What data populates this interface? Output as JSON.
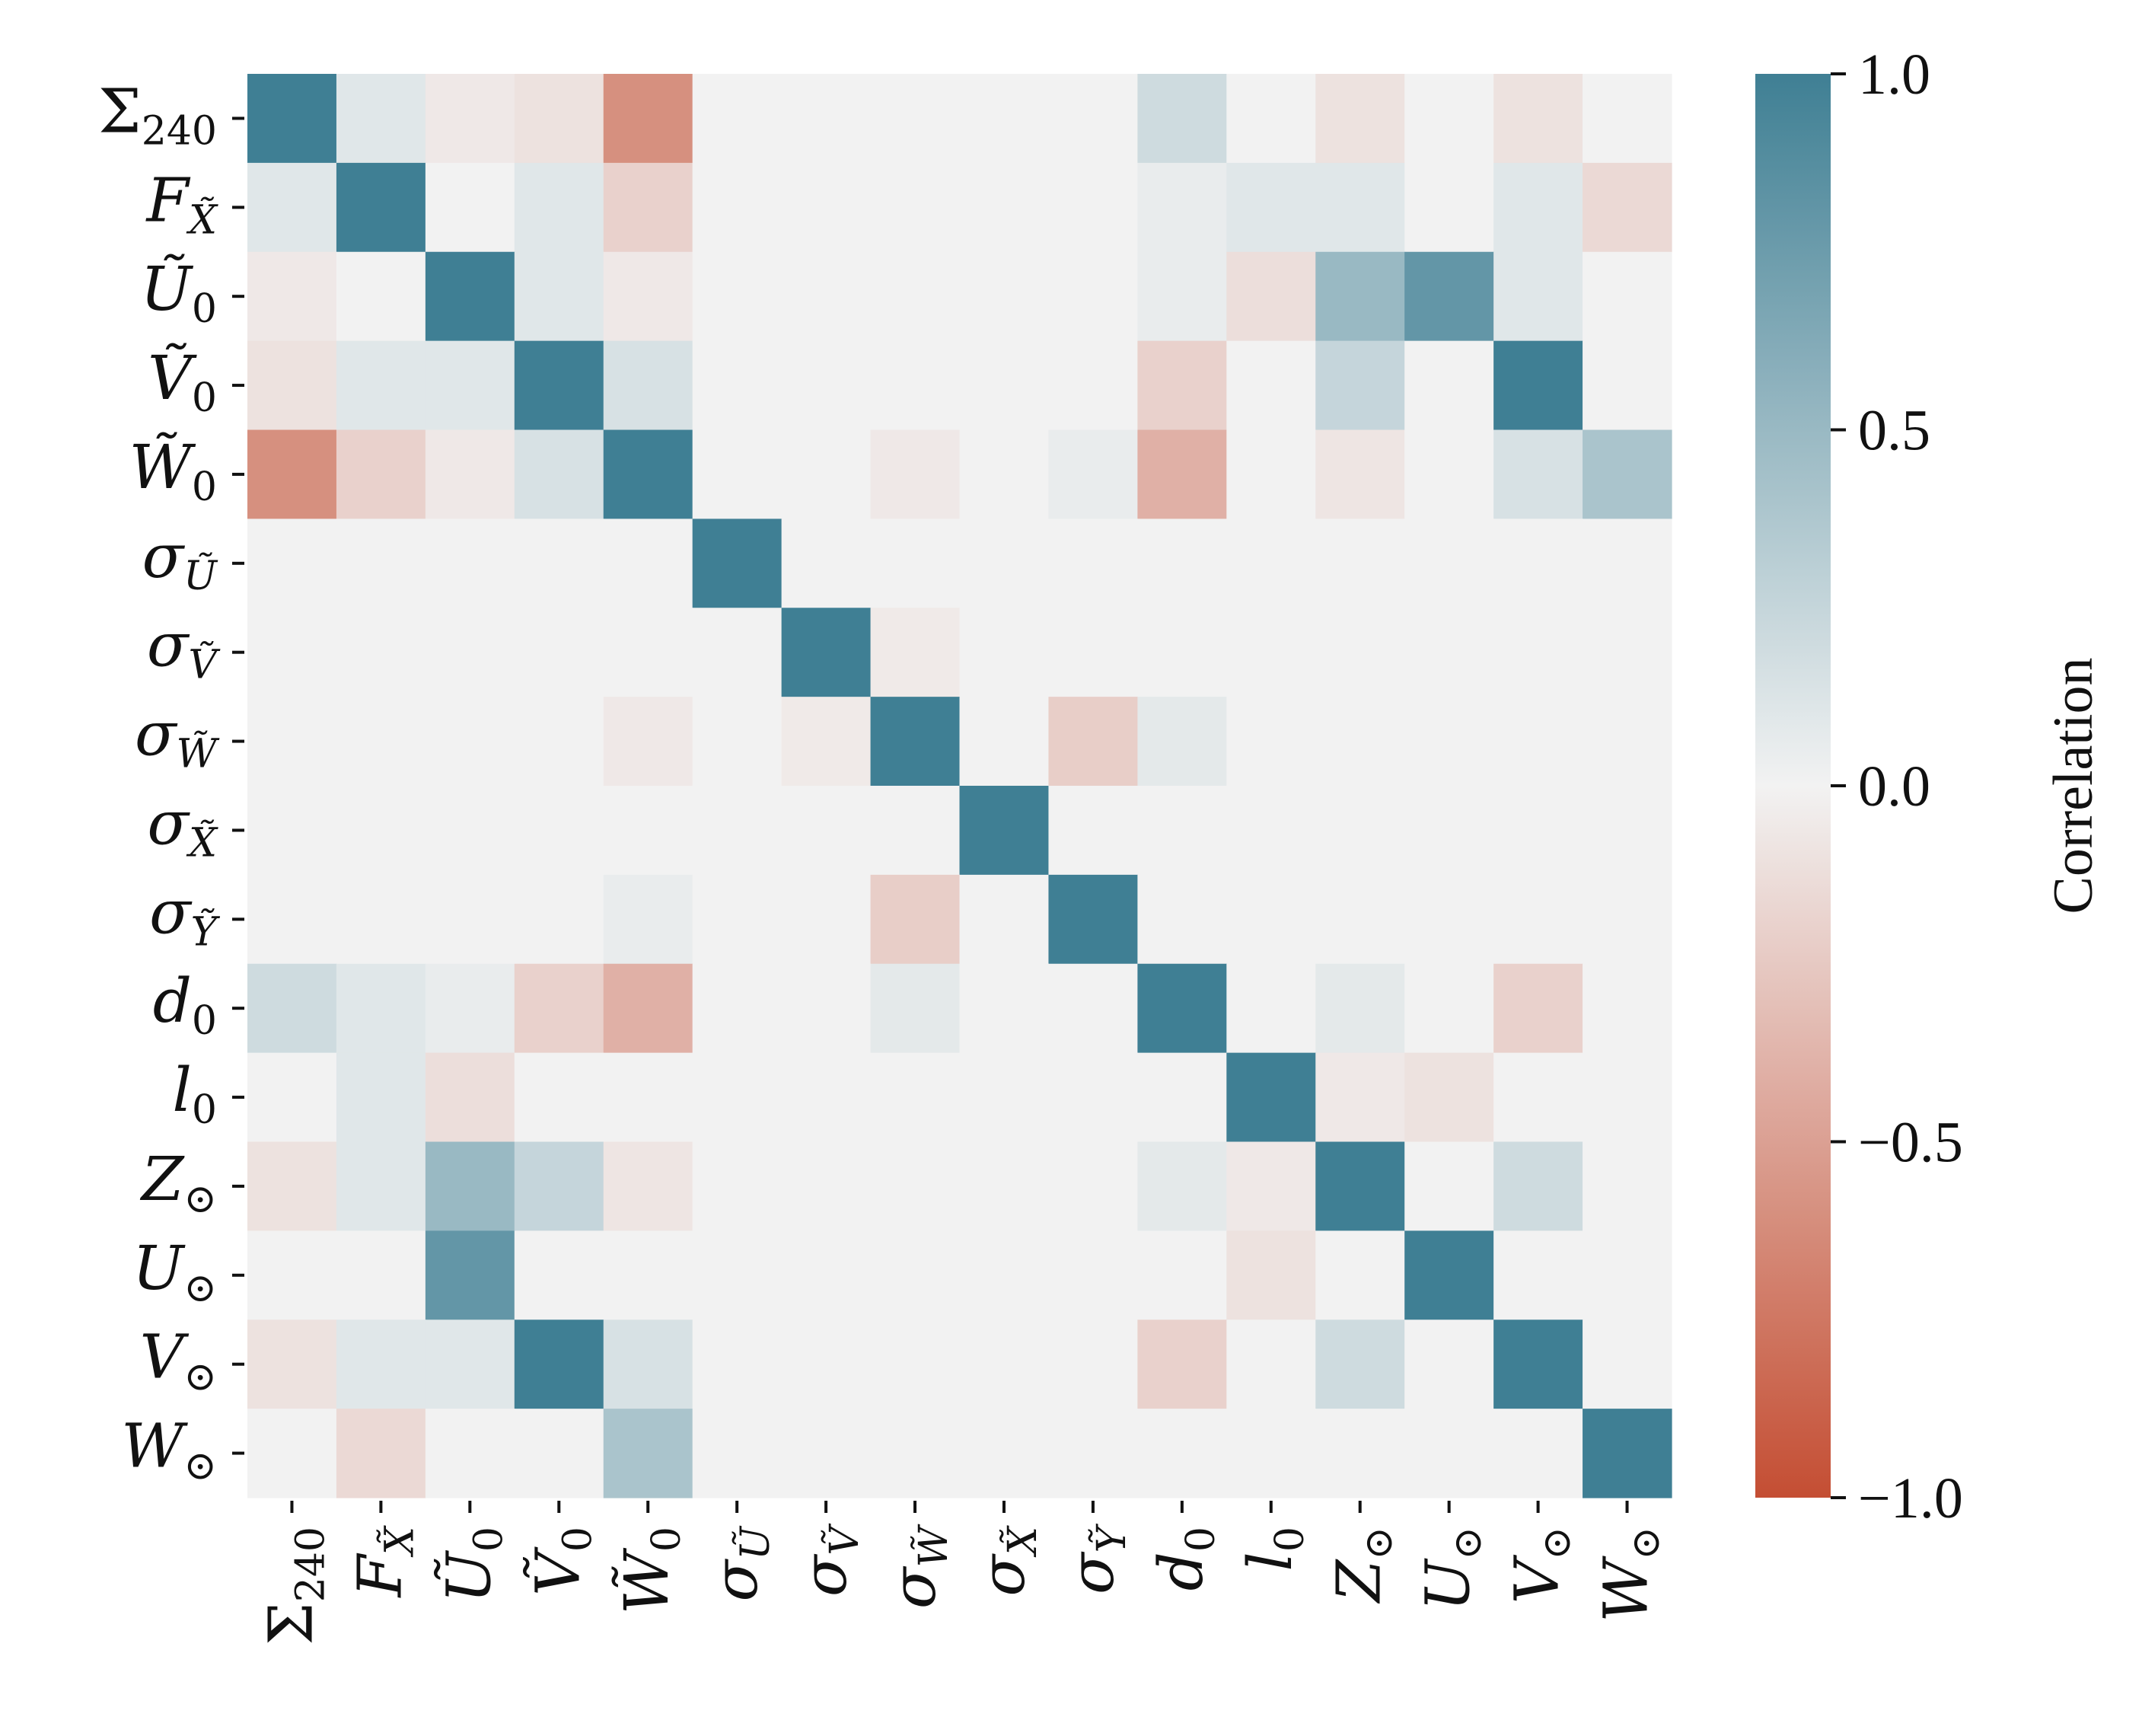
{
  "chart_data": {
    "type": "heatmap",
    "labels": [
      {
        "base": "Σ",
        "sub": "240",
        "italic": false
      },
      {
        "base": "F",
        "sub": "X̃",
        "italic": true
      },
      {
        "base": "Ũ",
        "sub": "0",
        "italic": true
      },
      {
        "base": "Ṽ",
        "sub": "0",
        "italic": true
      },
      {
        "base": "W̃",
        "sub": "0",
        "italic": true
      },
      {
        "base": "σ",
        "sub": "Ũ",
        "italic": true
      },
      {
        "base": "σ",
        "sub": "Ṽ",
        "italic": true
      },
      {
        "base": "σ",
        "sub": "W̃",
        "italic": true
      },
      {
        "base": "σ",
        "sub": "X̃",
        "italic": true
      },
      {
        "base": "σ",
        "sub": "Ỹ",
        "italic": true
      },
      {
        "base": "d",
        "sub": "0",
        "italic": true
      },
      {
        "base": "l",
        "sub": "0",
        "italic": true
      },
      {
        "base": "Z",
        "sub": "⊙",
        "italic": true
      },
      {
        "base": "U",
        "sub": "⊙",
        "italic": true
      },
      {
        "base": "V",
        "sub": "⊙",
        "italic": true
      },
      {
        "base": "W",
        "sub": "⊙",
        "italic": true
      }
    ],
    "matrix": [
      [
        1.0,
        0.1,
        -0.06,
        -0.1,
        -0.6,
        0,
        0,
        0,
        0,
        0,
        0.2,
        0,
        -0.1,
        0,
        -0.1,
        0
      ],
      [
        0.1,
        1.0,
        0,
        0.1,
        -0.2,
        0,
        0,
        0,
        0,
        0,
        0.05,
        0.1,
        0.1,
        0,
        0.1,
        -0.15
      ],
      [
        -0.06,
        0,
        1.0,
        0.1,
        -0.06,
        0,
        0,
        0,
        0,
        0,
        0.05,
        -0.12,
        0.5,
        0.8,
        0.1,
        0
      ],
      [
        -0.1,
        0.1,
        0.1,
        1.0,
        0.15,
        0,
        0,
        0,
        0,
        0,
        -0.2,
        0,
        0.25,
        0,
        1.0,
        0
      ],
      [
        -0.6,
        -0.2,
        -0.06,
        0.15,
        1.0,
        0,
        0,
        -0.06,
        0,
        0.05,
        -0.4,
        0,
        -0.08,
        0,
        0.15,
        0.4
      ],
      [
        0,
        0,
        0,
        0,
        0,
        1.0,
        0,
        0,
        0,
        0,
        0,
        0,
        0,
        0,
        0,
        0
      ],
      [
        0,
        0,
        0,
        0,
        0,
        0,
        1.0,
        -0.05,
        0,
        0,
        0,
        0,
        0,
        0,
        0,
        0
      ],
      [
        0,
        0,
        0,
        0,
        -0.06,
        0,
        -0.05,
        1.0,
        0,
        -0.22,
        0.08,
        0,
        0,
        0,
        0,
        0
      ],
      [
        0,
        0,
        0,
        0,
        0,
        0,
        0,
        0,
        1.0,
        0,
        0,
        0,
        0,
        0,
        0,
        0
      ],
      [
        0,
        0,
        0,
        0,
        0.05,
        0,
        0,
        -0.22,
        0,
        1.0,
        0,
        0,
        0,
        0,
        0,
        0
      ],
      [
        0.2,
        0.1,
        0.05,
        -0.2,
        -0.4,
        0,
        0,
        0.08,
        0,
        0,
        1.0,
        0,
        0.08,
        0,
        -0.2,
        0
      ],
      [
        0,
        0.1,
        -0.12,
        0,
        0,
        0,
        0,
        0,
        0,
        0,
        0,
        1.0,
        -0.06,
        -0.1,
        0,
        0
      ],
      [
        -0.1,
        0.1,
        0.5,
        0.25,
        -0.08,
        0,
        0,
        0,
        0,
        0,
        0.08,
        -0.06,
        1.0,
        0,
        0.2,
        0
      ],
      [
        0,
        0,
        0.8,
        0,
        0,
        0,
        0,
        0,
        0,
        0,
        0,
        -0.1,
        0,
        1.0,
        0,
        0
      ],
      [
        -0.1,
        0.1,
        0.1,
        1.0,
        0.15,
        0,
        0,
        0,
        0,
        0,
        -0.2,
        0,
        0.2,
        0,
        1.0,
        0
      ],
      [
        0,
        -0.15,
        0,
        0,
        0.4,
        0,
        0,
        0,
        0,
        0,
        0,
        0,
        0,
        0,
        0,
        1.0
      ]
    ],
    "colorbar": {
      "title": "Correlation",
      "range": [
        -1.0,
        1.0
      ],
      "ticks": [
        1.0,
        0.5,
        0.0,
        -0.5,
        -1.0
      ],
      "tick_labels": [
        "1.0",
        "0.5",
        "0.0",
        "−0.5",
        "−1.0"
      ],
      "colors": {
        "negative": "#c44e33",
        "neutral": "#f2f2f2",
        "positive": "#3f7f94"
      }
    }
  }
}
